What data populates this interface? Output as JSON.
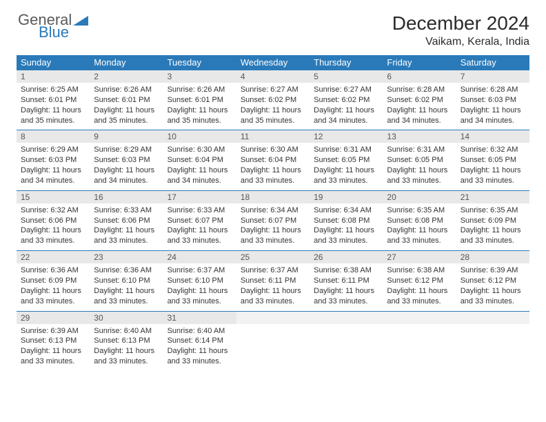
{
  "brand": {
    "general": "General",
    "blue": "Blue"
  },
  "title": "December 2024",
  "location": "Vaikam, Kerala, India",
  "dayHeaders": [
    "Sunday",
    "Monday",
    "Tuesday",
    "Wednesday",
    "Thursday",
    "Friday",
    "Saturday"
  ],
  "header_bg": "#2a7ab9",
  "daynum_bg": "#e8e8e8",
  "border_color": "#2a7ab9",
  "weeks": [
    [
      {
        "n": "1",
        "sr": "Sunrise: 6:25 AM",
        "ss": "Sunset: 6:01 PM",
        "d1": "Daylight: 11 hours",
        "d2": "and 35 minutes."
      },
      {
        "n": "2",
        "sr": "Sunrise: 6:26 AM",
        "ss": "Sunset: 6:01 PM",
        "d1": "Daylight: 11 hours",
        "d2": "and 35 minutes."
      },
      {
        "n": "3",
        "sr": "Sunrise: 6:26 AM",
        "ss": "Sunset: 6:01 PM",
        "d1": "Daylight: 11 hours",
        "d2": "and 35 minutes."
      },
      {
        "n": "4",
        "sr": "Sunrise: 6:27 AM",
        "ss": "Sunset: 6:02 PM",
        "d1": "Daylight: 11 hours",
        "d2": "and 35 minutes."
      },
      {
        "n": "5",
        "sr": "Sunrise: 6:27 AM",
        "ss": "Sunset: 6:02 PM",
        "d1": "Daylight: 11 hours",
        "d2": "and 34 minutes."
      },
      {
        "n": "6",
        "sr": "Sunrise: 6:28 AM",
        "ss": "Sunset: 6:02 PM",
        "d1": "Daylight: 11 hours",
        "d2": "and 34 minutes."
      },
      {
        "n": "7",
        "sr": "Sunrise: 6:28 AM",
        "ss": "Sunset: 6:03 PM",
        "d1": "Daylight: 11 hours",
        "d2": "and 34 minutes."
      }
    ],
    [
      {
        "n": "8",
        "sr": "Sunrise: 6:29 AM",
        "ss": "Sunset: 6:03 PM",
        "d1": "Daylight: 11 hours",
        "d2": "and 34 minutes."
      },
      {
        "n": "9",
        "sr": "Sunrise: 6:29 AM",
        "ss": "Sunset: 6:03 PM",
        "d1": "Daylight: 11 hours",
        "d2": "and 34 minutes."
      },
      {
        "n": "10",
        "sr": "Sunrise: 6:30 AM",
        "ss": "Sunset: 6:04 PM",
        "d1": "Daylight: 11 hours",
        "d2": "and 34 minutes."
      },
      {
        "n": "11",
        "sr": "Sunrise: 6:30 AM",
        "ss": "Sunset: 6:04 PM",
        "d1": "Daylight: 11 hours",
        "d2": "and 33 minutes."
      },
      {
        "n": "12",
        "sr": "Sunrise: 6:31 AM",
        "ss": "Sunset: 6:05 PM",
        "d1": "Daylight: 11 hours",
        "d2": "and 33 minutes."
      },
      {
        "n": "13",
        "sr": "Sunrise: 6:31 AM",
        "ss": "Sunset: 6:05 PM",
        "d1": "Daylight: 11 hours",
        "d2": "and 33 minutes."
      },
      {
        "n": "14",
        "sr": "Sunrise: 6:32 AM",
        "ss": "Sunset: 6:05 PM",
        "d1": "Daylight: 11 hours",
        "d2": "and 33 minutes."
      }
    ],
    [
      {
        "n": "15",
        "sr": "Sunrise: 6:32 AM",
        "ss": "Sunset: 6:06 PM",
        "d1": "Daylight: 11 hours",
        "d2": "and 33 minutes."
      },
      {
        "n": "16",
        "sr": "Sunrise: 6:33 AM",
        "ss": "Sunset: 6:06 PM",
        "d1": "Daylight: 11 hours",
        "d2": "and 33 minutes."
      },
      {
        "n": "17",
        "sr": "Sunrise: 6:33 AM",
        "ss": "Sunset: 6:07 PM",
        "d1": "Daylight: 11 hours",
        "d2": "and 33 minutes."
      },
      {
        "n": "18",
        "sr": "Sunrise: 6:34 AM",
        "ss": "Sunset: 6:07 PM",
        "d1": "Daylight: 11 hours",
        "d2": "and 33 minutes."
      },
      {
        "n": "19",
        "sr": "Sunrise: 6:34 AM",
        "ss": "Sunset: 6:08 PM",
        "d1": "Daylight: 11 hours",
        "d2": "and 33 minutes."
      },
      {
        "n": "20",
        "sr": "Sunrise: 6:35 AM",
        "ss": "Sunset: 6:08 PM",
        "d1": "Daylight: 11 hours",
        "d2": "and 33 minutes."
      },
      {
        "n": "21",
        "sr": "Sunrise: 6:35 AM",
        "ss": "Sunset: 6:09 PM",
        "d1": "Daylight: 11 hours",
        "d2": "and 33 minutes."
      }
    ],
    [
      {
        "n": "22",
        "sr": "Sunrise: 6:36 AM",
        "ss": "Sunset: 6:09 PM",
        "d1": "Daylight: 11 hours",
        "d2": "and 33 minutes."
      },
      {
        "n": "23",
        "sr": "Sunrise: 6:36 AM",
        "ss": "Sunset: 6:10 PM",
        "d1": "Daylight: 11 hours",
        "d2": "and 33 minutes."
      },
      {
        "n": "24",
        "sr": "Sunrise: 6:37 AM",
        "ss": "Sunset: 6:10 PM",
        "d1": "Daylight: 11 hours",
        "d2": "and 33 minutes."
      },
      {
        "n": "25",
        "sr": "Sunrise: 6:37 AM",
        "ss": "Sunset: 6:11 PM",
        "d1": "Daylight: 11 hours",
        "d2": "and 33 minutes."
      },
      {
        "n": "26",
        "sr": "Sunrise: 6:38 AM",
        "ss": "Sunset: 6:11 PM",
        "d1": "Daylight: 11 hours",
        "d2": "and 33 minutes."
      },
      {
        "n": "27",
        "sr": "Sunrise: 6:38 AM",
        "ss": "Sunset: 6:12 PM",
        "d1": "Daylight: 11 hours",
        "d2": "and 33 minutes."
      },
      {
        "n": "28",
        "sr": "Sunrise: 6:39 AM",
        "ss": "Sunset: 6:12 PM",
        "d1": "Daylight: 11 hours",
        "d2": "and 33 minutes."
      }
    ],
    [
      {
        "n": "29",
        "sr": "Sunrise: 6:39 AM",
        "ss": "Sunset: 6:13 PM",
        "d1": "Daylight: 11 hours",
        "d2": "and 33 minutes."
      },
      {
        "n": "30",
        "sr": "Sunrise: 6:40 AM",
        "ss": "Sunset: 6:13 PM",
        "d1": "Daylight: 11 hours",
        "d2": "and 33 minutes."
      },
      {
        "n": "31",
        "sr": "Sunrise: 6:40 AM",
        "ss": "Sunset: 6:14 PM",
        "d1": "Daylight: 11 hours",
        "d2": "and 33 minutes."
      },
      {
        "empty": true
      },
      {
        "empty": true
      },
      {
        "empty": true
      },
      {
        "empty": true
      }
    ]
  ]
}
